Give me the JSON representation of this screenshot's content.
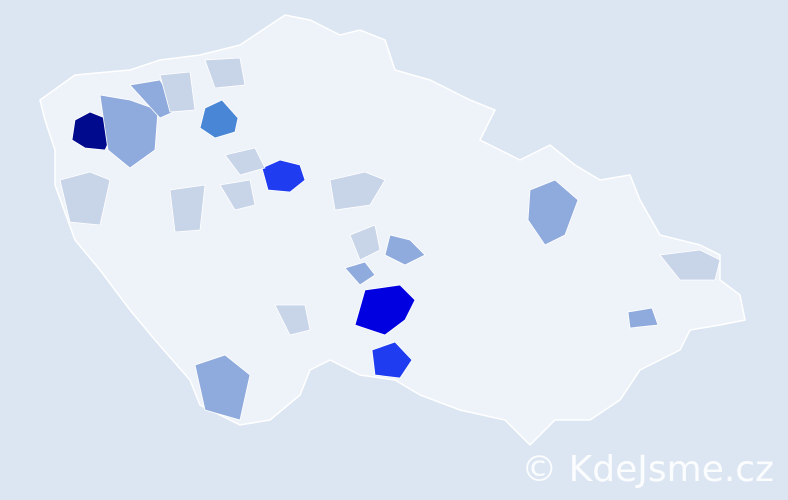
{
  "watermark": "© KdeJsme.cz",
  "colors": {
    "background": "#dce6f2",
    "land": "#eef2f9",
    "border": "#ffffff",
    "level_1": "#c8d4e8",
    "level_2": "#8faadc",
    "level_3": "#4a86d6",
    "level_4": "#1f3cf0",
    "level_5": "#0000e0",
    "level_6": "#000a8c"
  },
  "regions": [
    {
      "level": "level_6"
    },
    {
      "level": "level_4"
    },
    {
      "level": "level_5"
    },
    {
      "level": "level_4"
    },
    {
      "level": "level_3"
    },
    {
      "level": "level_2"
    },
    {
      "level": "level_2"
    },
    {
      "level": "level_2"
    },
    {
      "level": "level_2"
    },
    {
      "level": "level_2"
    },
    {
      "level": "level_2"
    },
    {
      "level": "level_2"
    },
    {
      "level": "level_1"
    },
    {
      "level": "level_1"
    },
    {
      "level": "level_1"
    },
    {
      "level": "level_1"
    },
    {
      "level": "level_1"
    },
    {
      "level": "level_1"
    },
    {
      "level": "level_1"
    },
    {
      "level": "level_1"
    },
    {
      "level": "level_1"
    },
    {
      "level": "level_1"
    }
  ]
}
